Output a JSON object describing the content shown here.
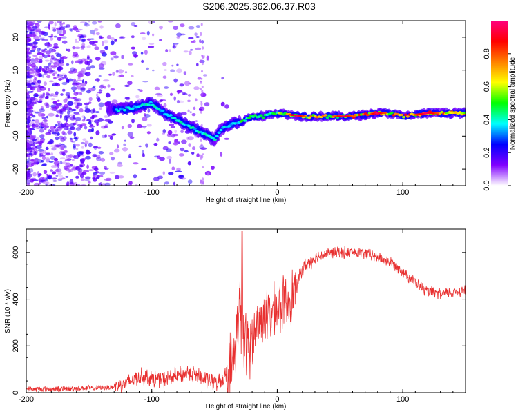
{
  "title": "S206.2025.362.06.37.R03",
  "chart_data": [
    {
      "type": "heatmap",
      "name": "spectrogram",
      "xlabel": "Height of straight line (km)",
      "ylabel": "Frequency (Hz)",
      "xlim": [
        -200,
        150
      ],
      "ylim": [
        -25,
        25
      ],
      "xticks": [
        "-200",
        "-100",
        "0",
        "100"
      ],
      "yticks": [
        "20",
        "10",
        "0",
        "-10",
        "-20"
      ],
      "ridge": {
        "x": [
          -125,
          -110,
          -100,
          -90,
          -80,
          -70,
          -60,
          -55,
          -50,
          -45,
          -40,
          -35,
          -30,
          -25,
          -20,
          -15,
          -10,
          -5,
          0,
          20,
          40,
          60,
          80,
          90,
          100,
          120,
          150
        ],
        "freq": [
          -2,
          -1,
          0,
          -3,
          -5,
          -7,
          -9,
          -10,
          -11,
          -8,
          -7,
          -6,
          -6,
          -5,
          -4,
          -4,
          -4,
          -3,
          -3,
          -4,
          -4,
          -4,
          -3,
          -3,
          -4,
          -3,
          -3
        ]
      },
      "colorbar": {
        "label": "Normalized spectral amplitude",
        "ticks": [
          "0.0",
          "0.2",
          "0.4",
          "0.6",
          "0.8"
        ],
        "colors": [
          "#ffffff",
          "#8000ff",
          "#0000ff",
          "#00ffff",
          "#00ff00",
          "#ffff00",
          "#ff8000",
          "#ff0000",
          "#ff0080"
        ]
      }
    },
    {
      "type": "line",
      "name": "snr",
      "xlabel": "Height of straight line (km)",
      "ylabel": "SNR (10 * v/v)",
      "xlim": [
        -200,
        150
      ],
      "ylim": [
        0,
        700
      ],
      "xticks": [
        "-200",
        "-100",
        "0",
        "100"
      ],
      "yticks": [
        "600",
        "400",
        "200",
        "0"
      ],
      "color": "#e83030",
      "series": [
        {
          "name": "SNR",
          "x": [
            -200,
            -180,
            -160,
            -140,
            -130,
            -120,
            -110,
            -100,
            -90,
            -80,
            -70,
            -60,
            -50,
            -45,
            -40,
            -35,
            -30,
            -28,
            -25,
            -20,
            -15,
            -10,
            -5,
            0,
            5,
            10,
            15,
            20,
            30,
            40,
            50,
            60,
            70,
            80,
            90,
            100,
            110,
            120,
            130,
            140,
            150
          ],
          "values": [
            15,
            15,
            18,
            20,
            25,
            40,
            70,
            60,
            55,
            70,
            90,
            60,
            45,
            50,
            90,
            130,
            380,
            250,
            200,
            230,
            300,
            330,
            330,
            360,
            380,
            400,
            450,
            530,
            580,
            595,
            600,
            600,
            595,
            580,
            560,
            520,
            470,
            430,
            420,
            430,
            440
          ]
        }
      ],
      "spike": {
        "x": -28,
        "value": 690
      }
    }
  ]
}
